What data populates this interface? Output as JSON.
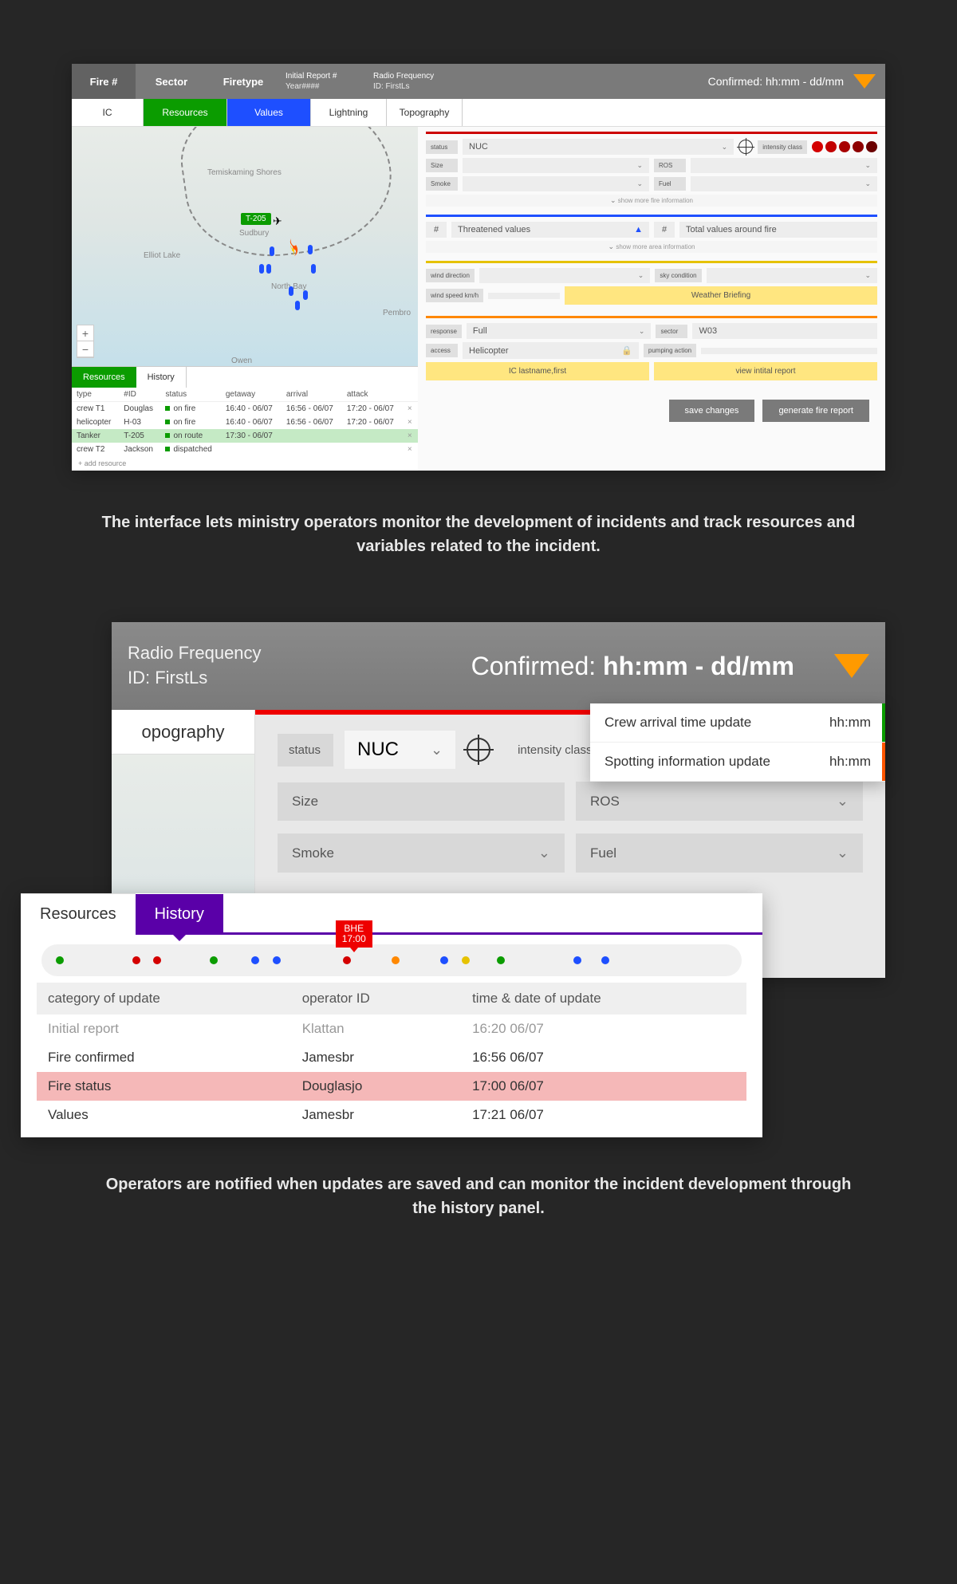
{
  "colors": {
    "green": "#0b9c00",
    "blue": "#1e4fff",
    "red": "#c00000",
    "orange": "#ff8800",
    "yellow": "#e6c200",
    "purple": "#5a00a8",
    "flag_red": "#e00000",
    "triangle_orange": "#ff9a00"
  },
  "header": {
    "fire": "Fire #",
    "sector": "Sector",
    "firetype": "Firetype",
    "initial_report": "Initial Report #",
    "year": "Year####",
    "radio_freq": "Radio Frequency",
    "first_id": "ID: FirstLs",
    "confirmed": "Confirmed: hh:mm - dd/mm"
  },
  "tabs": {
    "ic": "IC",
    "resources": "Resources",
    "values": "Values",
    "lightning": "Lightning",
    "topography": "Topography"
  },
  "map": {
    "cities": {
      "temiskaming": "Temiskaming Shores",
      "sudbury": "Sudbury",
      "elliot": "Elliot Lake",
      "northbay": "North Bay",
      "pembroke": "Pembro",
      "owen": "Owen"
    },
    "tag": "T-205",
    "zoom_in": "+",
    "zoom_out": "−"
  },
  "res_tabs": {
    "resources": "Resources",
    "history": "History"
  },
  "res_cols": {
    "type": "type",
    "id": "#ID",
    "status": "status",
    "getaway": "getaway",
    "arrival": "arrival",
    "attack": "attack"
  },
  "res_rows": [
    {
      "type": "crew T1",
      "id": "Douglas",
      "status": "on fire",
      "getaway": "16:40 - 06/07",
      "arrival": "16:56 - 06/07",
      "attack": "17:20 - 06/07"
    },
    {
      "type": "helicopter",
      "id": "H-03",
      "status": "on fire",
      "getaway": "16:40 - 06/07",
      "arrival": "16:56 - 06/07",
      "attack": "17:20 - 06/07"
    },
    {
      "type": "Tanker",
      "id": "T-205",
      "status": "on route",
      "getaway": "17:30 - 06/07",
      "arrival": "",
      "attack": ""
    },
    {
      "type": "crew T2",
      "id": "Jackson",
      "status": "dispatched",
      "getaway": "",
      "arrival": "",
      "attack": ""
    }
  ],
  "add_resource": "+ add resource",
  "side": {
    "status_lbl": "status",
    "status_val": "NUC",
    "intensity_lbl": "intensity class",
    "intensity_colors": [
      "#d40000",
      "#c20000",
      "#a80000",
      "#8e0000",
      "#6b0000"
    ],
    "size_lbl": "Size",
    "ros_lbl": "ROS",
    "smoke_lbl": "Smoke",
    "fuel_lbl": "Fuel",
    "show_more_fire": "show more fire information",
    "threatened_num": "#",
    "threatened_lbl": "Threatened values",
    "total_num": "#",
    "total_lbl": "Total values around fire",
    "show_more_area": "show more area information",
    "wind_dir_lbl": "wind direction",
    "wind_speed_lbl": "wind speed km/h",
    "sky_lbl": "sky condition",
    "weather_btn": "Weather Briefing",
    "response_lbl": "response",
    "response_val": "Full",
    "sector_lbl": "sector",
    "sector_val": "W03",
    "access_lbl": "access",
    "access_val": "Helicopter",
    "pumping_lbl": "pumping action",
    "ic_btn": "IC lastname,first",
    "view_report_btn": "view intital report"
  },
  "actions": {
    "save": "save changes",
    "generate": "generate fire report"
  },
  "caption1": "The interface lets ministry operators monitor the development of incidents and track resources and variables related to the incident.",
  "panel2": {
    "radio": "Radio Frequency",
    "firstid": "ID: FirstLs",
    "confirmed_label": "Confirmed: ",
    "confirmed_time": "hh:mm - dd/mm",
    "topo_tab": "opography",
    "status_lbl": "status",
    "status_val": "NUC",
    "intensity_lbl": "intensity class",
    "intensity_colors": [
      "#d40000",
      "#c20000",
      "#a80000",
      "#8e0000",
      "#6b0000"
    ],
    "size": "Size",
    "ros": "ROS",
    "smoke": "Smoke",
    "fuel": "Fuel"
  },
  "notifications": [
    {
      "label": "Crew arrival time update",
      "time": "hh:mm",
      "stripe": "#0b9c00"
    },
    {
      "label": "Spotting information update",
      "time": "hh:mm",
      "stripe": "#ff5500"
    }
  ],
  "history": {
    "tab_res": "Resources",
    "tab_hist": "History",
    "flag_label": "BHE",
    "flag_time": "17:00",
    "timeline_dots": [
      {
        "pct": 2,
        "color": "#0b9c00"
      },
      {
        "pct": 13,
        "color": "#d40000"
      },
      {
        "pct": 16,
        "color": "#d40000"
      },
      {
        "pct": 24,
        "color": "#0b9c00"
      },
      {
        "pct": 30,
        "color": "#1e4fff"
      },
      {
        "pct": 33,
        "color": "#1e4fff"
      },
      {
        "pct": 43,
        "color": "#d40000"
      },
      {
        "pct": 50,
        "color": "#ff8800"
      },
      {
        "pct": 57,
        "color": "#1e4fff"
      },
      {
        "pct": 60,
        "color": "#e6c200"
      },
      {
        "pct": 65,
        "color": "#0b9c00"
      },
      {
        "pct": 76,
        "color": "#1e4fff"
      },
      {
        "pct": 80,
        "color": "#1e4fff"
      }
    ],
    "cols": {
      "cat": "category of update",
      "op": "operator ID",
      "time": "time & date of update"
    },
    "rows": [
      {
        "cat": "Initial report",
        "op": "Klattan",
        "time": "16:20 06/07",
        "fade": true
      },
      {
        "cat": "Fire confirmed",
        "op": "Jamesbr",
        "time": "16:56 06/07"
      },
      {
        "cat": "Fire status",
        "op": "Douglasjo",
        "time": "17:00 06/07",
        "hl": true
      },
      {
        "cat": "Values",
        "op": "Jamesbr",
        "time": "17:21 06/07"
      }
    ]
  },
  "caption2": "Operators are notified when updates are saved and can monitor the incident development through the history panel."
}
